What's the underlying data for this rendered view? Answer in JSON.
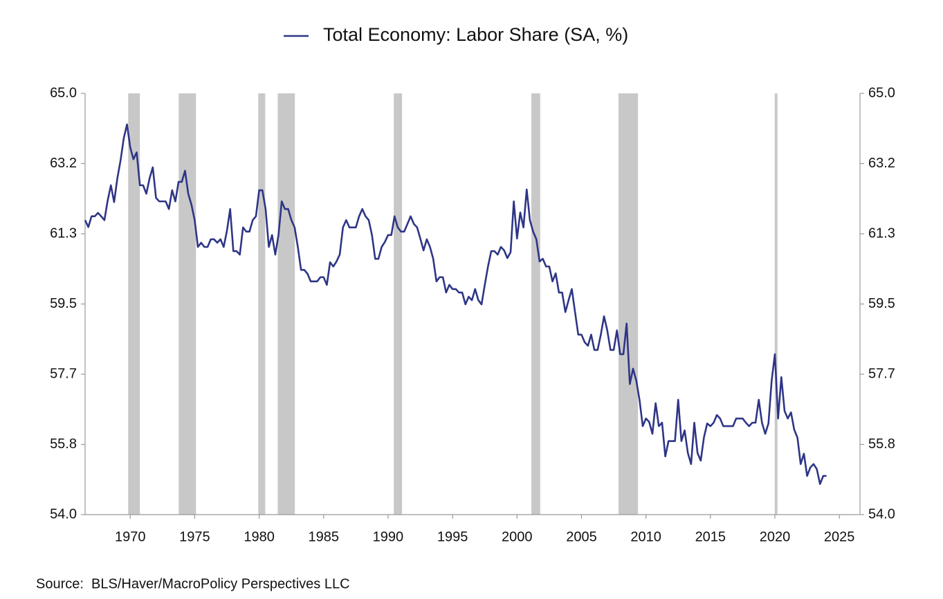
{
  "chart_data": {
    "type": "line",
    "source": "Source:  BLS/Haver/MacroPolicy Perspectives LLC",
    "legend": "top",
    "grid": false,
    "xlim": [
      1966.5,
      2026.6
    ],
    "xticks": [
      1970,
      1975,
      1980,
      1985,
      1990,
      1995,
      2000,
      2005,
      2010,
      2015,
      2020,
      2025
    ],
    "ylim": [
      54,
      65
    ],
    "yticks": [
      {
        "value": 54,
        "label": "54.0"
      },
      {
        "value": 55.833,
        "label": "55.8"
      },
      {
        "value": 57.667,
        "label": "57.7"
      },
      {
        "value": 59.5,
        "label": "59.5"
      },
      {
        "value": 61.333,
        "label": "61.3"
      },
      {
        "value": 63.167,
        "label": "63.2"
      },
      {
        "value": 65,
        "label": "65.0"
      }
    ],
    "y2lim": [
      54,
      65
    ],
    "y2ticks": [
      {
        "value": 54,
        "label": "54.0"
      },
      {
        "value": 55.833,
        "label": "55.8"
      },
      {
        "value": 57.667,
        "label": "57.7"
      },
      {
        "value": 59.5,
        "label": "59.5"
      },
      {
        "value": 61.333,
        "label": "61.3"
      },
      {
        "value": 63.167,
        "label": "63.2"
      },
      {
        "value": 65,
        "label": "65.0"
      }
    ],
    "recession_color": "#c8c8c8",
    "recessions": [
      [
        1969.84,
        1970.75
      ],
      [
        1973.76,
        1975.1
      ],
      [
        1979.93,
        1980.47
      ],
      [
        1981.44,
        1982.77
      ],
      [
        1990.44,
        1991.08
      ],
      [
        2001.11,
        2001.8
      ],
      [
        2007.87,
        2009.38
      ],
      [
        2019.99,
        2020.2
      ]
    ],
    "x": [
      1966.5,
      1966.75,
      1967,
      1967.25,
      1967.5,
      1967.75,
      1968,
      1968.25,
      1968.5,
      1968.75,
      1969,
      1969.25,
      1969.5,
      1969.75,
      1970,
      1970.25,
      1970.5,
      1970.75,
      1971,
      1971.25,
      1971.5,
      1971.75,
      1972,
      1972.25,
      1972.5,
      1972.75,
      1973,
      1973.25,
      1973.5,
      1973.75,
      1974,
      1974.25,
      1974.5,
      1974.75,
      1975,
      1975.25,
      1975.5,
      1975.75,
      1976,
      1976.25,
      1976.5,
      1976.75,
      1977,
      1977.25,
      1977.5,
      1977.75,
      1978,
      1978.25,
      1978.5,
      1978.75,
      1979,
      1979.25,
      1979.5,
      1979.75,
      1980,
      1980.25,
      1980.5,
      1980.75,
      1981,
      1981.25,
      1981.5,
      1981.75,
      1982,
      1982.25,
      1982.5,
      1982.75,
      1983,
      1983.25,
      1983.5,
      1983.75,
      1984,
      1984.25,
      1984.5,
      1984.75,
      1985,
      1985.25,
      1985.5,
      1985.75,
      1986,
      1986.25,
      1986.5,
      1986.75,
      1987,
      1987.25,
      1987.5,
      1987.75,
      1988,
      1988.25,
      1988.5,
      1988.75,
      1989,
      1989.25,
      1989.5,
      1989.75,
      1990,
      1990.25,
      1990.5,
      1990.75,
      1991,
      1991.25,
      1991.5,
      1991.75,
      1992,
      1992.25,
      1992.5,
      1992.75,
      1993,
      1993.25,
      1993.5,
      1993.75,
      1994,
      1994.25,
      1994.5,
      1994.75,
      1995,
      1995.25,
      1995.5,
      1995.75,
      1996,
      1996.25,
      1996.5,
      1996.75,
      1997,
      1997.25,
      1997.5,
      1997.75,
      1998,
      1998.25,
      1998.5,
      1998.75,
      1999,
      1999.25,
      1999.5,
      1999.75,
      2000,
      2000.25,
      2000.5,
      2000.75,
      2001,
      2001.25,
      2001.5,
      2001.75,
      2002,
      2002.25,
      2002.5,
      2002.75,
      2003,
      2003.25,
      2003.5,
      2003.75,
      2004,
      2004.25,
      2004.5,
      2004.75,
      2005,
      2005.25,
      2005.5,
      2005.75,
      2006,
      2006.25,
      2006.5,
      2006.75,
      2007,
      2007.25,
      2007.5,
      2007.75,
      2008,
      2008.25,
      2008.5,
      2008.75,
      2009,
      2009.25,
      2009.5,
      2009.75,
      2010,
      2010.25,
      2010.5,
      2010.75,
      2011,
      2011.25,
      2011.5,
      2011.75,
      2012,
      2012.25,
      2012.5,
      2012.75,
      2013,
      2013.25,
      2013.5,
      2013.75,
      2014,
      2014.25,
      2014.5,
      2014.75,
      2015,
      2015.25,
      2015.5,
      2015.75,
      2016,
      2016.25,
      2016.5,
      2016.75,
      2017,
      2017.25,
      2017.5,
      2017.75,
      2018,
      2018.25,
      2018.5,
      2018.75,
      2019,
      2019.25,
      2019.5,
      2019.75,
      2020,
      2020.25,
      2020.5,
      2020.75,
      2021,
      2021.25,
      2021.5,
      2021.75,
      2022,
      2022.25,
      2022.5,
      2022.75,
      2023,
      2023.25,
      2023.5,
      2023.75,
      2024
    ],
    "series": [
      {
        "name": "Total Economy: Labor Share (SA, %)",
        "color": "#2e3586",
        "values": [
          61.69,
          61.51,
          61.79,
          61.79,
          61.88,
          61.79,
          61.69,
          62.2,
          62.6,
          62.16,
          62.78,
          63.25,
          63.83,
          64.19,
          63.59,
          63.28,
          63.46,
          62.6,
          62.6,
          62.38,
          62.78,
          63.07,
          62.27,
          62.18,
          62.18,
          62.18,
          61.98,
          62.47,
          62.18,
          62.69,
          62.69,
          62.98,
          62.38,
          62.09,
          61.69,
          60.99,
          61.1,
          60.99,
          60.99,
          61.19,
          61.19,
          61.1,
          61.19,
          60.99,
          61.41,
          61.98,
          60.88,
          60.88,
          60.79,
          61.5,
          61.39,
          61.39,
          61.69,
          61.79,
          62.47,
          62.47,
          61.98,
          60.99,
          61.3,
          60.79,
          61.3,
          62.18,
          61.98,
          61.98,
          61.69,
          61.5,
          60.99,
          60.39,
          60.39,
          60.29,
          60.09,
          60.09,
          60.09,
          60.2,
          60.2,
          60.0,
          60.59,
          60.48,
          60.61,
          60.79,
          61.5,
          61.69,
          61.5,
          61.5,
          61.5,
          61.79,
          61.98,
          61.79,
          61.69,
          61.3,
          60.68,
          60.68,
          60.99,
          61.12,
          61.3,
          61.3,
          61.79,
          61.5,
          61.39,
          61.39,
          61.59,
          61.79,
          61.59,
          61.5,
          61.21,
          60.9,
          61.19,
          60.99,
          60.68,
          60.09,
          60.2,
          60.2,
          59.8,
          60.0,
          59.89,
          59.89,
          59.8,
          59.8,
          59.49,
          59.69,
          59.6,
          59.89,
          59.6,
          59.49,
          60.0,
          60.48,
          60.88,
          60.88,
          60.79,
          60.99,
          60.9,
          60.7,
          60.85,
          62.18,
          61.21,
          61.89,
          61.5,
          62.49,
          61.69,
          61.39,
          61.19,
          60.61,
          60.68,
          60.48,
          60.48,
          60.09,
          60.3,
          59.8,
          59.8,
          59.29,
          59.6,
          59.89,
          59.29,
          58.7,
          58.7,
          58.5,
          58.41,
          58.7,
          58.3,
          58.3,
          58.7,
          59.18,
          58.81,
          58.3,
          58.3,
          58.81,
          58.19,
          58.19,
          58.99,
          57.41,
          57.81,
          57.5,
          57.0,
          56.31,
          56.51,
          56.42,
          56.11,
          56.91,
          56.31,
          56.4,
          55.52,
          55.92,
          55.92,
          55.92,
          57.0,
          55.92,
          56.2,
          55.61,
          55.32,
          56.4,
          55.61,
          55.41,
          56.02,
          56.38,
          56.31,
          56.4,
          56.6,
          56.51,
          56.31,
          56.31,
          56.31,
          56.31,
          56.51,
          56.51,
          56.51,
          56.4,
          56.31,
          56.4,
          56.4,
          57.0,
          56.4,
          56.11,
          56.38,
          57.5,
          58.19,
          56.51,
          57.59,
          56.71,
          56.51,
          56.67,
          56.22,
          56.01,
          55.32,
          55.59,
          55.01,
          55.23,
          55.32,
          55.19,
          54.8,
          55.01,
          55.01
        ]
      }
    ]
  }
}
